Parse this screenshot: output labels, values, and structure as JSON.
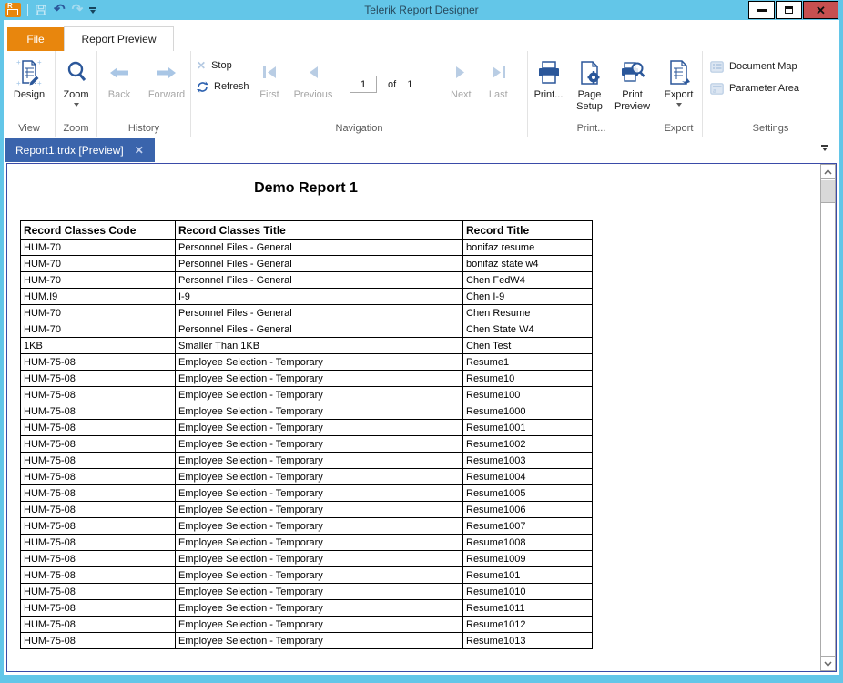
{
  "window": {
    "title": "Telerik Report Designer"
  },
  "quick_access": {
    "save": "Save",
    "undo": "Undo",
    "redo": "Redo"
  },
  "tabs": {
    "file": "File",
    "report_preview": "Report Preview"
  },
  "ribbon": {
    "design": "Design",
    "zoom": "Zoom",
    "back": "Back",
    "forward": "Forward",
    "stop": "Stop",
    "refresh": "Refresh",
    "first": "First",
    "previous": "Previous",
    "page_number": "1",
    "of_label": "of",
    "page_count": "1",
    "next": "Next",
    "last": "Last",
    "print": "Print...",
    "page_setup_line1": "Page",
    "page_setup_line2": "Setup",
    "print_preview_line1": "Print",
    "print_preview_line2": "Preview",
    "export": "Export",
    "document_map": "Document Map",
    "parameter_area": "Parameter Area",
    "groups": {
      "view": "View",
      "zoom": "Zoom",
      "history": "History",
      "navigation": "Navigation",
      "print": "Print...",
      "export": "Export",
      "settings": "Settings"
    }
  },
  "document_tab": {
    "title": "Report1.trdx [Preview]"
  },
  "report": {
    "title": "Demo Report 1",
    "columns": [
      "Record Classes Code",
      "Record Classes Title",
      "Record Title"
    ],
    "rows": [
      [
        "HUM-70",
        "Personnel Files - General",
        "bonifaz resume"
      ],
      [
        "HUM-70",
        "Personnel Files - General",
        "bonifaz state w4"
      ],
      [
        "HUM-70",
        "Personnel Files - General",
        "Chen FedW4"
      ],
      [
        "HUM.I9",
        "I-9",
        "Chen I-9"
      ],
      [
        "HUM-70",
        "Personnel Files - General",
        "Chen Resume"
      ],
      [
        "HUM-70",
        "Personnel Files - General",
        "Chen State W4"
      ],
      [
        "1KB",
        "Smaller Than 1KB",
        "Chen Test"
      ],
      [
        "HUM-75-08",
        "Employee Selection - Temporary",
        "Resume1"
      ],
      [
        "HUM-75-08",
        "Employee Selection - Temporary",
        "Resume10"
      ],
      [
        "HUM-75-08",
        "Employee Selection - Temporary",
        "Resume100"
      ],
      [
        "HUM-75-08",
        "Employee Selection - Temporary",
        "Resume1000"
      ],
      [
        "HUM-75-08",
        "Employee Selection - Temporary",
        "Resume1001"
      ],
      [
        "HUM-75-08",
        "Employee Selection - Temporary",
        "Resume1002"
      ],
      [
        "HUM-75-08",
        "Employee Selection - Temporary",
        "Resume1003"
      ],
      [
        "HUM-75-08",
        "Employee Selection - Temporary",
        "Resume1004"
      ],
      [
        "HUM-75-08",
        "Employee Selection - Temporary",
        "Resume1005"
      ],
      [
        "HUM-75-08",
        "Employee Selection - Temporary",
        "Resume1006"
      ],
      [
        "HUM-75-08",
        "Employee Selection - Temporary",
        "Resume1007"
      ],
      [
        "HUM-75-08",
        "Employee Selection - Temporary",
        "Resume1008"
      ],
      [
        "HUM-75-08",
        "Employee Selection - Temporary",
        "Resume1009"
      ],
      [
        "HUM-75-08",
        "Employee Selection - Temporary",
        "Resume101"
      ],
      [
        "HUM-75-08",
        "Employee Selection - Temporary",
        "Resume1010"
      ],
      [
        "HUM-75-08",
        "Employee Selection - Temporary",
        "Resume1011"
      ],
      [
        "HUM-75-08",
        "Employee Selection - Temporary",
        "Resume1012"
      ],
      [
        "HUM-75-08",
        "Employee Selection - Temporary",
        "Resume1013"
      ]
    ]
  },
  "colors": {
    "titlebar_bg": "#63C6E8",
    "file_tab_orange": "#E8860D",
    "doc_tab_blue": "#3A64AC",
    "icon_blue": "#2B579A",
    "disabled_icon_blue": "#B9CDE4",
    "close_button_red": "#C75050",
    "panel_border": "#3A4BA8"
  }
}
